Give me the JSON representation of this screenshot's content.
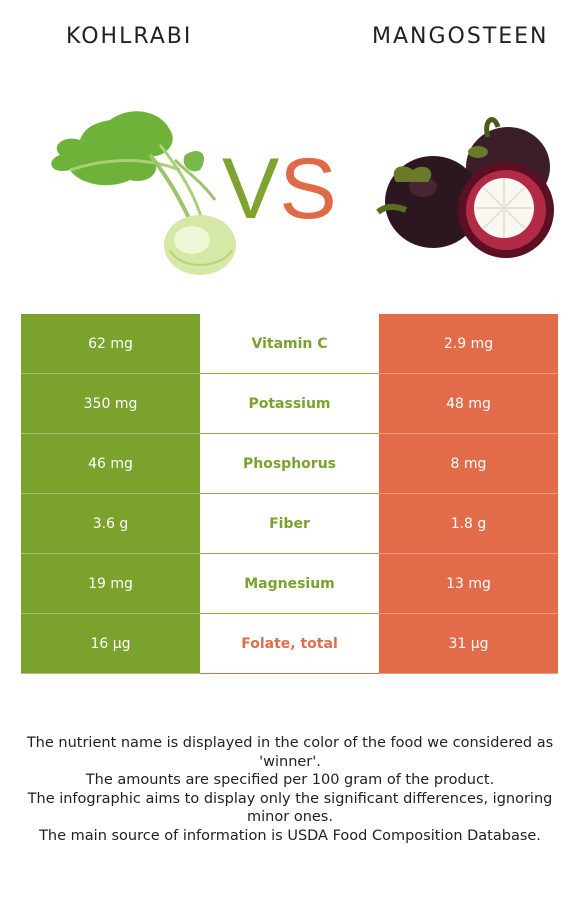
{
  "left_food": {
    "name": "KOHLRABI"
  },
  "right_food": {
    "name": "MANGOSTEEN"
  },
  "vs": {
    "v": "V",
    "s": "S"
  },
  "colors": {
    "left": "#7ba22d",
    "right": "#e26b4a"
  },
  "rows": [
    {
      "left": "62 mg",
      "nutrient": "Vitamin C",
      "right": "2.9 mg",
      "winner": "left"
    },
    {
      "left": "350 mg",
      "nutrient": "Potassium",
      "right": "48 mg",
      "winner": "left"
    },
    {
      "left": "46 mg",
      "nutrient": "Phosphorus",
      "right": "8 mg",
      "winner": "left"
    },
    {
      "left": "3.6 g",
      "nutrient": "Fiber",
      "right": "1.8 g",
      "winner": "left"
    },
    {
      "left": "19 mg",
      "nutrient": "Magnesium",
      "right": "13 mg",
      "winner": "left"
    },
    {
      "left": "16 µg",
      "nutrient": "Folate, total",
      "right": "31 µg",
      "winner": "right"
    }
  ],
  "footer": {
    "line1": "The nutrient name is displayed in the color of the food we considered as 'winner'.",
    "line2": "The amounts are specified per 100 gram of the product.",
    "line3": "The infographic aims to display only the significant differences, ignoring minor ones.",
    "line4": "The main source of information is USDA Food Composition Database."
  }
}
